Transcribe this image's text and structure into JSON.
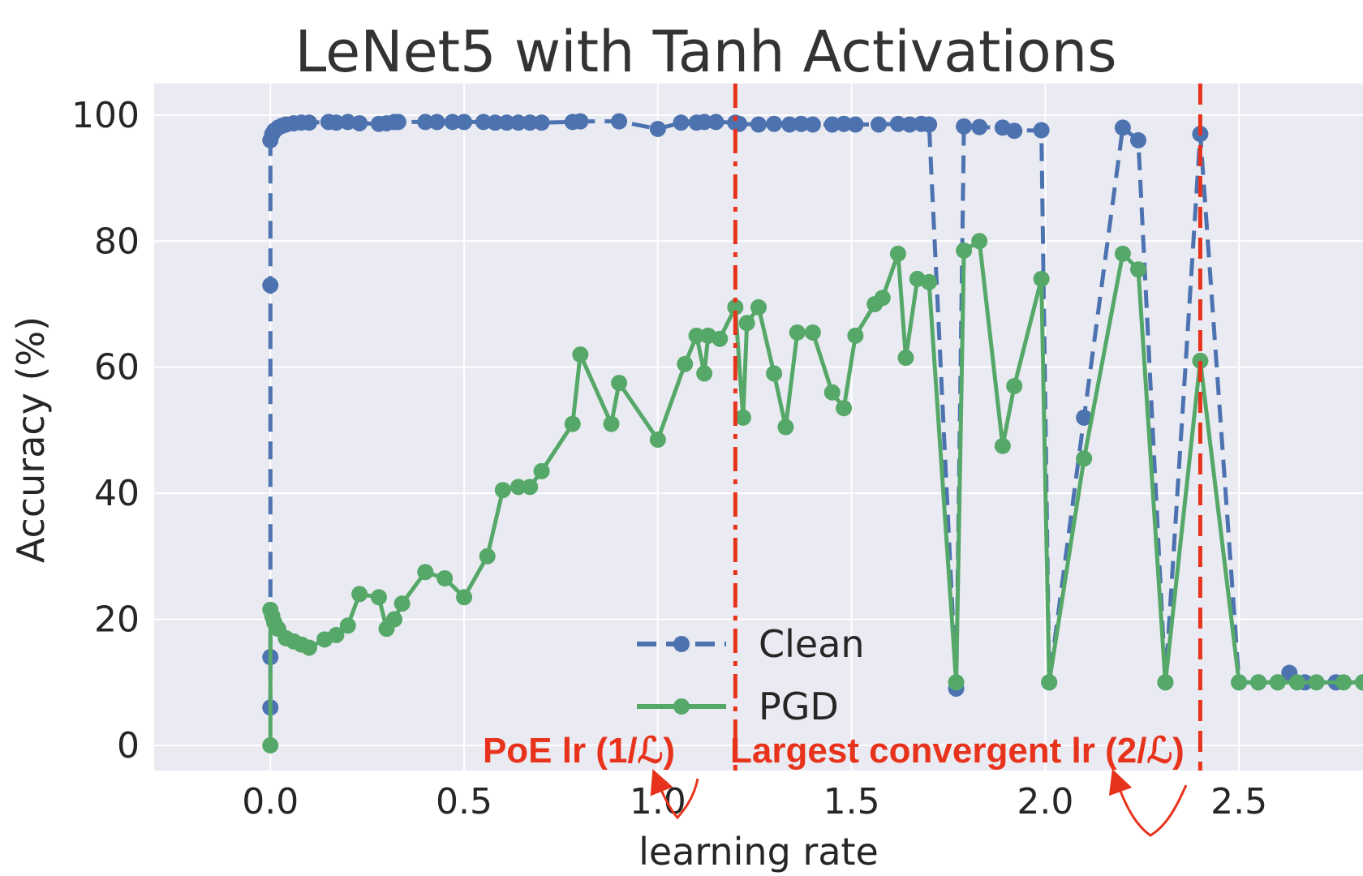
{
  "chart_data": {
    "type": "line",
    "title": "LeNet5 with Tanh Activations",
    "xlabel": "learning rate",
    "ylabel": "Accuracy (%)",
    "xlim": [
      -0.3,
      2.82
    ],
    "ylim": [
      -4,
      105
    ],
    "xticks": [
      0.0,
      0.5,
      1.0,
      1.5,
      2.0,
      2.5
    ],
    "xtick_labels": [
      "0.0",
      "0.5",
      "1.0",
      "1.5",
      "2.0",
      "2.5"
    ],
    "yticks": [
      0,
      20,
      40,
      60,
      80,
      100
    ],
    "ytick_labels": [
      "0",
      "20",
      "40",
      "60",
      "80",
      "100"
    ],
    "grid": true,
    "legend_position": "bottom-center",
    "series": [
      {
        "name": "Clean",
        "color": "#4c72b0",
        "style": "dashed",
        "x": [
          0.0,
          0.0,
          0.0,
          0.0,
          0.005,
          0.01,
          0.02,
          0.03,
          0.04,
          0.06,
          0.08,
          0.1,
          0.15,
          0.17,
          0.2,
          0.23,
          0.28,
          0.3,
          0.32,
          0.33,
          0.4,
          0.43,
          0.47,
          0.5,
          0.55,
          0.58,
          0.61,
          0.64,
          0.67,
          0.7,
          0.78,
          0.8,
          0.9,
          1.0,
          1.06,
          1.1,
          1.12,
          1.15,
          1.2,
          1.21,
          1.26,
          1.3,
          1.34,
          1.37,
          1.4,
          1.45,
          1.48,
          1.51,
          1.57,
          1.62,
          1.65,
          1.68,
          1.7,
          1.77,
          1.79,
          1.83,
          1.89,
          1.92,
          1.99,
          2.01,
          2.1,
          2.2,
          2.24,
          2.31,
          2.4,
          2.5,
          2.55,
          2.6,
          2.63,
          2.67,
          2.75,
          2.82
        ],
        "y": [
          6,
          14,
          73,
          96,
          97,
          97.5,
          98,
          98.3,
          98.5,
          98.7,
          98.8,
          98.8,
          98.9,
          98.8,
          98.9,
          98.7,
          98.6,
          98.7,
          98.9,
          98.9,
          98.9,
          98.9,
          98.9,
          98.9,
          98.9,
          98.8,
          98.8,
          98.8,
          98.8,
          98.8,
          98.9,
          99.0,
          99.0,
          97.8,
          98.8,
          98.8,
          98.9,
          98.9,
          98.8,
          98.6,
          98.5,
          98.6,
          98.5,
          98.6,
          98.5,
          98.5,
          98.6,
          98.5,
          98.5,
          98.6,
          98.5,
          98.6,
          98.5,
          9,
          98.2,
          98.1,
          98.0,
          97.5,
          97.6,
          10,
          52,
          98,
          96,
          10,
          97,
          10,
          10,
          10,
          11.5,
          10,
          10,
          10
        ]
      },
      {
        "name": "PGD",
        "color": "#55a868",
        "style": "solid",
        "x": [
          0.0,
          0.0,
          0.005,
          0.01,
          0.02,
          0.04,
          0.06,
          0.08,
          0.1,
          0.14,
          0.17,
          0.2,
          0.23,
          0.28,
          0.3,
          0.32,
          0.34,
          0.4,
          0.45,
          0.5,
          0.56,
          0.6,
          0.64,
          0.67,
          0.7,
          0.78,
          0.8,
          0.88,
          0.9,
          1.0,
          1.07,
          1.1,
          1.12,
          1.13,
          1.16,
          1.2,
          1.22,
          1.23,
          1.26,
          1.3,
          1.33,
          1.36,
          1.4,
          1.45,
          1.48,
          1.51,
          1.56,
          1.58,
          1.62,
          1.64,
          1.67,
          1.7,
          1.77,
          1.79,
          1.83,
          1.89,
          1.92,
          1.99,
          2.01,
          2.1,
          2.2,
          2.24,
          2.31,
          2.4,
          2.5,
          2.55,
          2.6,
          2.65,
          2.7,
          2.77,
          2.82
        ],
        "y": [
          0,
          21.5,
          20.5,
          19.5,
          18.5,
          17,
          16.5,
          16,
          15.5,
          16.8,
          17.5,
          19,
          24,
          23.5,
          18.5,
          20,
          22.5,
          27.5,
          26.5,
          23.5,
          30,
          40.5,
          41,
          41,
          43.5,
          51,
          62,
          51,
          57.5,
          48.5,
          60.5,
          65,
          59,
          65,
          64.5,
          69.5,
          52,
          67,
          69.5,
          59,
          50.5,
          65.5,
          65.5,
          56,
          53.5,
          65,
          70,
          71,
          78,
          61.5,
          74,
          73.5,
          10,
          78.5,
          80,
          47.5,
          57,
          74,
          10,
          45.5,
          78,
          75.5,
          10,
          61,
          10,
          10,
          10,
          10,
          10,
          10,
          10
        ]
      }
    ],
    "vlines": [
      {
        "x": 1.2,
        "color": "#e8331c",
        "style": "dashdot",
        "label": "PoE lr (1/ℒ)"
      },
      {
        "x": 2.4,
        "color": "#e8331c",
        "style": "dashed",
        "label": "Largest convergent lr  (2/ℒ)"
      }
    ]
  }
}
